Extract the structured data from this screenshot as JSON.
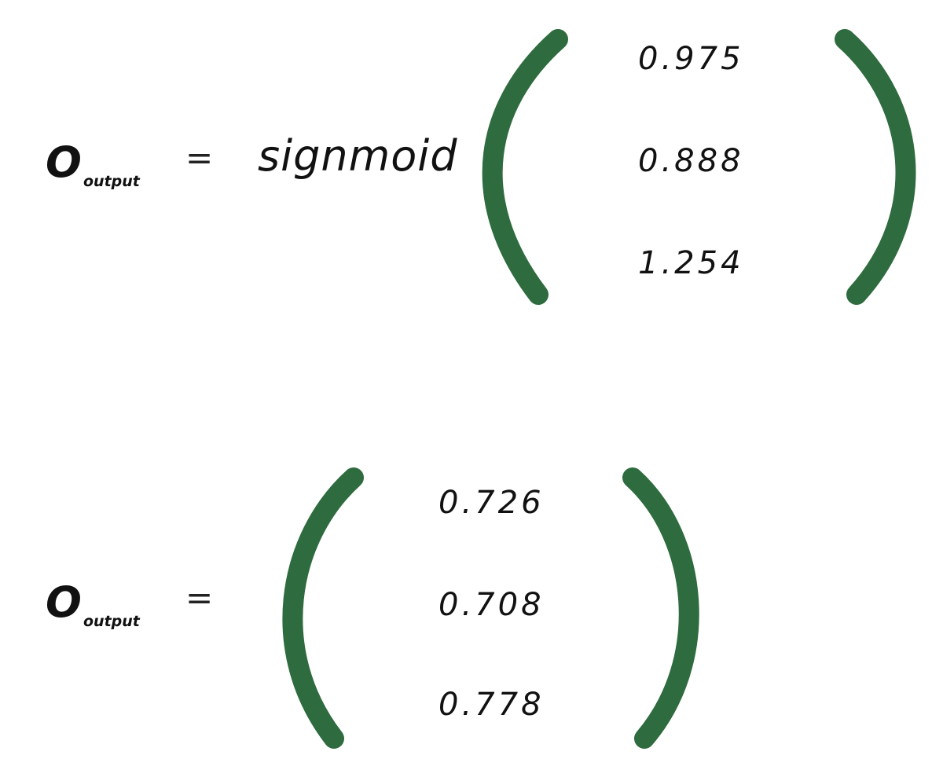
{
  "equations": [
    {
      "lhs_symbol": "O",
      "lhs_subscript": "output",
      "equals": "=",
      "function": "signmoid",
      "vector": [
        "0.975",
        "0.888",
        "1.254"
      ]
    },
    {
      "lhs_symbol": "O",
      "lhs_subscript": "output",
      "equals": "=",
      "vector": [
        "0.726",
        "0.708",
        "0.778"
      ]
    }
  ],
  "colors": {
    "bracket": "#2e6b3e",
    "text": "#111111",
    "background": "#ffffff"
  }
}
